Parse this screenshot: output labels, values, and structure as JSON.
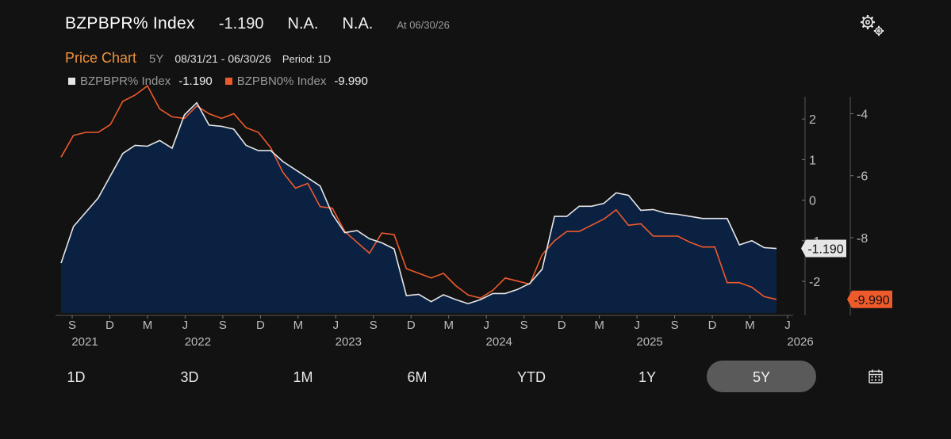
{
  "header": {
    "ticker": "BZPBPR% Index",
    "last": "-1.190",
    "change": "N.A.",
    "pct_change": "N.A.",
    "as_of": "At 06/30/26"
  },
  "subheader": {
    "title": "Price Chart",
    "range": "5Y",
    "dates": "08/31/21 - 06/30/26",
    "period": "Period: 1D"
  },
  "legend": [
    {
      "name": "BZPBPR% Index",
      "value": "-1.190",
      "color": "#e6e6e6"
    },
    {
      "name": "BZPBN0% Index",
      "value": "-9.990",
      "color": "#ef5a2b"
    }
  ],
  "timeframes": [
    "1D",
    "3D",
    "1M",
    "6M",
    "YTD",
    "1Y",
    "5Y"
  ],
  "active_timeframe": "5Y",
  "icons": {
    "settings": "gears-icon",
    "calendar": "calendar-icon"
  },
  "colors": {
    "background": "#121212",
    "area_fill": "#0b2142",
    "series1": "#e6e6e6",
    "series2": "#ef5a2b",
    "accent": "#f0923a",
    "active_button": "#5a5a5a"
  },
  "chart_data": {
    "type": "area",
    "x_ticks": [
      {
        "label": "S",
        "year": "2021"
      },
      {
        "label": "D",
        "year": ""
      },
      {
        "label": "M",
        "year": ""
      },
      {
        "label": "J",
        "year": "2022"
      },
      {
        "label": "S",
        "year": ""
      },
      {
        "label": "D",
        "year": ""
      },
      {
        "label": "M",
        "year": ""
      },
      {
        "label": "J",
        "year": "2023"
      },
      {
        "label": "S",
        "year": ""
      },
      {
        "label": "D",
        "year": ""
      },
      {
        "label": "M",
        "year": ""
      },
      {
        "label": "J",
        "year": "2024"
      },
      {
        "label": "S",
        "year": ""
      },
      {
        "label": "D",
        "year": ""
      },
      {
        "label": "M",
        "year": ""
      },
      {
        "label": "J",
        "year": "2025"
      },
      {
        "label": "S",
        "year": ""
      },
      {
        "label": "D",
        "year": ""
      },
      {
        "label": "M",
        "year": ""
      },
      {
        "label": "J",
        "year": "2026"
      }
    ],
    "x_months_range": [
      0,
      58
    ],
    "left_axis": {
      "ticks": [
        2,
        1,
        0,
        -1,
        -2
      ],
      "range": [
        -2.78,
        2.55
      ]
    },
    "right_axis": {
      "ticks": [
        -4,
        -6,
        -8
      ],
      "range": [
        -10.43,
        -3.45
      ]
    },
    "grid": false,
    "legend_position": "top-left",
    "series": [
      {
        "name": "BZPBPR% Index",
        "axis": "left",
        "last_label": "-1.190",
        "x": [
          0,
          1,
          2,
          3,
          4,
          5,
          6,
          7,
          8,
          9,
          10,
          11,
          12,
          13,
          14,
          15,
          16,
          17,
          18,
          19,
          20,
          21,
          22,
          23,
          24,
          25,
          26,
          27,
          28,
          29,
          30,
          31,
          32,
          33,
          34,
          35,
          36,
          37,
          38,
          39,
          40,
          41,
          42,
          43,
          44,
          45,
          46,
          47,
          48,
          49,
          50,
          51,
          52,
          53,
          54,
          55,
          56,
          57,
          58
        ],
        "values": [
          -1.55,
          -0.65,
          -0.3,
          0.05,
          0.6,
          1.15,
          1.35,
          1.33,
          1.47,
          1.28,
          2.1,
          2.4,
          1.85,
          1.82,
          1.75,
          1.35,
          1.22,
          1.22,
          0.95,
          0.75,
          0.55,
          0.35,
          -0.35,
          -0.8,
          -0.75,
          -0.95,
          -1.05,
          -1.2,
          -2.35,
          -2.32,
          -2.5,
          -2.33,
          -2.45,
          -2.55,
          -2.45,
          -2.3,
          -2.3,
          -2.2,
          -2.05,
          -1.7,
          -0.4,
          -0.4,
          -0.15,
          -0.15,
          -0.08,
          0.18,
          0.12,
          -0.25,
          -0.23,
          -0.32,
          -0.35,
          -0.4,
          -0.45,
          -0.45,
          -0.45,
          -1.1,
          -1.0,
          -1.17,
          -1.19
        ]
      },
      {
        "name": "BZPBN0% Index",
        "axis": "right",
        "last_label": "-9.990",
        "x": [
          0,
          1,
          2,
          3,
          4,
          5,
          6,
          7,
          8,
          9,
          10,
          11,
          12,
          13,
          14,
          15,
          16,
          17,
          18,
          19,
          20,
          21,
          22,
          23,
          24,
          25,
          26,
          27,
          28,
          29,
          30,
          31,
          32,
          33,
          34,
          35,
          36,
          37,
          38,
          39,
          40,
          41,
          42,
          43,
          44,
          45,
          46,
          47,
          48,
          49,
          50,
          51,
          52,
          53,
          54,
          55,
          56,
          57,
          58
        ],
        "values": [
          -5.4,
          -4.7,
          -4.6,
          -4.6,
          -4.35,
          -3.6,
          -3.4,
          -3.1,
          -3.85,
          -4.1,
          -4.15,
          -3.75,
          -4.0,
          -4.15,
          -4.0,
          -4.45,
          -4.6,
          -5.1,
          -5.9,
          -6.4,
          -6.25,
          -7.0,
          -7.05,
          -7.8,
          -8.15,
          -8.5,
          -7.85,
          -7.9,
          -9.0,
          -9.15,
          -9.3,
          -9.15,
          -9.55,
          -9.85,
          -9.95,
          -9.7,
          -9.3,
          -9.4,
          -9.5,
          -8.55,
          -8.1,
          -7.8,
          -7.8,
          -7.6,
          -7.4,
          -7.1,
          -7.6,
          -7.55,
          -7.95,
          -7.95,
          -7.95,
          -8.15,
          -8.3,
          -8.3,
          -9.45,
          -9.45,
          -9.6,
          -9.9,
          -9.99
        ]
      }
    ]
  }
}
